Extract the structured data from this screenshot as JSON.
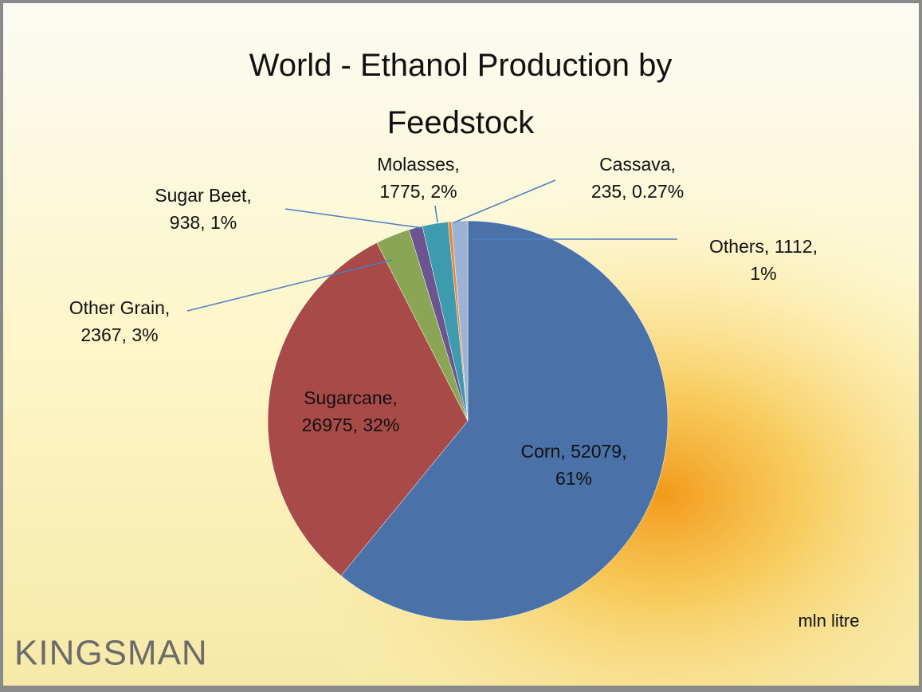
{
  "chart_data": {
    "type": "pie",
    "title": "World - Ethanol Production by Feedstock",
    "values": [
      52079,
      26975,
      2367,
      938,
      1775,
      235,
      1112
    ],
    "value_labels": [
      "Corn, 52079, 61%",
      "Sugarcane, 26975, 32%",
      "Other Grain, 2367, 3%",
      "Sugar Beet, 938, 1%",
      "Molasses, 1775, 2%",
      "Cassava, 235, 0.27%",
      "Others, 1112, 1%"
    ],
    "colors": [
      "#4a72a8",
      "#a84a48",
      "#8aa654",
      "#6b548f",
      "#3d9bb0",
      "#e8873a",
      "#9db3d6"
    ],
    "note": "mln litre"
  },
  "logo": "KINGSMAN"
}
